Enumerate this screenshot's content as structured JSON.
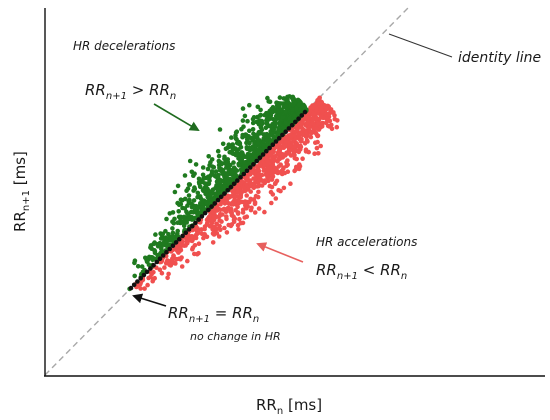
{
  "chart_data": {
    "type": "scatter",
    "xlabel": "RR",
    "xlabel_sub": "n",
    "xlabel_unit": " [ms]",
    "ylabel": "RR",
    "ylabel_sub": "n+1",
    "ylabel_unit": " [ms]",
    "grid": false,
    "axis_ticks": false,
    "colors": {
      "decelerations": "#1f7a1f",
      "accelerations": "#f0504f",
      "no_change": "#111111",
      "identity_line": "#a8a8a8",
      "arrow_decel": "#1f6b1f",
      "arrow_accel": "#e7605e",
      "arrow_neutral": "#111111"
    },
    "identity_line_label": "identity line",
    "annotations": {
      "decelerations": {
        "title": "HR decelerations",
        "lhs": "RR",
        "lhs_sub": "n+1",
        "op": " > ",
        "rhs": "RR",
        "rhs_sub": "n"
      },
      "accelerations": {
        "title": "HR accelerations",
        "lhs": "RR",
        "lhs_sub": "n+1",
        "op": " < ",
        "rhs": "RR",
        "rhs_sub": "n"
      },
      "no_change": {
        "lhs": "RR",
        "lhs_sub": "n+1",
        "op": " = ",
        "rhs": "RR",
        "rhs_sub": "n",
        "note": "no change in HR"
      }
    },
    "series": [
      {
        "key": "decelerations",
        "region": "above identity line"
      },
      {
        "key": "accelerations",
        "region": "below identity line"
      },
      {
        "key": "no_change",
        "region": "on identity line"
      }
    ]
  }
}
